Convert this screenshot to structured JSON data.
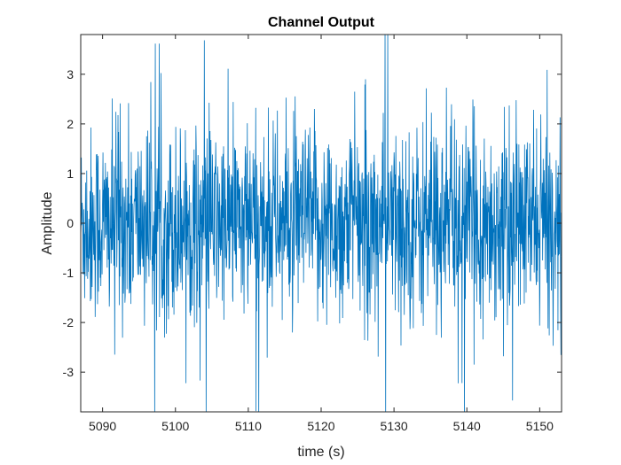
{
  "chart_data": {
    "type": "line",
    "title": "Channel Output",
    "xlabel": "time (s)",
    "ylabel": "Amplitude",
    "xlim": [
      5087,
      5153
    ],
    "ylim": [
      -3.8,
      3.8
    ],
    "xticks": [
      5090,
      5100,
      5110,
      5120,
      5130,
      5140,
      5150
    ],
    "yticks": [
      -3,
      -2,
      -1,
      0,
      1,
      2,
      3
    ],
    "grid": false,
    "legend": "none",
    "series": [
      {
        "color": "#0072BD",
        "description": "dense noise-like signal",
        "samples": 1600,
        "core_amplitude": 1.6,
        "peak_amplitude": 3.8
      }
    ]
  },
  "colors": {
    "line": "#0072BD",
    "axis": "#262626",
    "background": "#ffffff"
  }
}
